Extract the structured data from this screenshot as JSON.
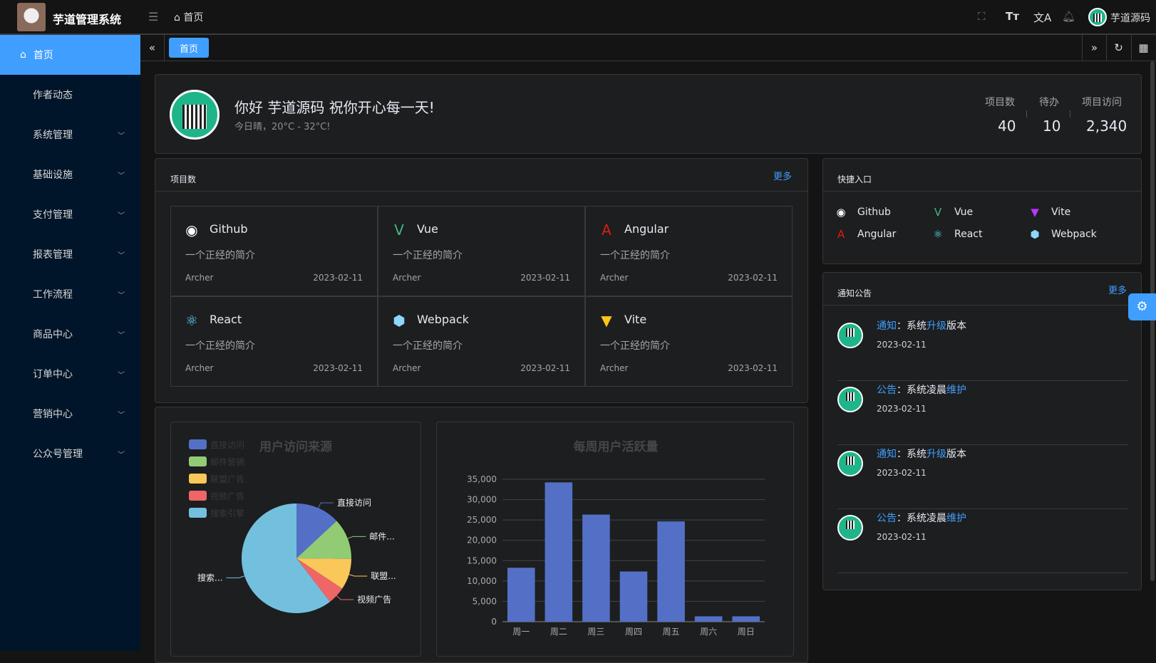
{
  "header": {
    "app_title": "芋道管理系统",
    "breadcrumb": "首页",
    "user_name": "芋道源码"
  },
  "sidebar": {
    "items": [
      {
        "label": "首页",
        "active": true
      },
      {
        "label": "作者动态"
      },
      {
        "label": "系统管理",
        "expand": true
      },
      {
        "label": "基础设施",
        "expand": true
      },
      {
        "label": "支付管理",
        "expand": true
      },
      {
        "label": "报表管理",
        "expand": true
      },
      {
        "label": "工作流程",
        "expand": true
      },
      {
        "label": "商品中心",
        "expand": true
      },
      {
        "label": "订单中心",
        "expand": true
      },
      {
        "label": "营销中心",
        "expand": true
      },
      {
        "label": "公众号管理",
        "expand": true
      }
    ]
  },
  "tabs": {
    "active": "首页"
  },
  "welcome": {
    "greeting": "你好 芋道源码 祝你开心每一天!",
    "weather": "今日晴，20°C - 32°C!",
    "stats": [
      {
        "label": "项目数",
        "value": "40"
      },
      {
        "label": "待办",
        "value": "10"
      },
      {
        "label": "项目访问",
        "value": "2,340"
      }
    ]
  },
  "projects": {
    "title": "项目数",
    "more": "更多",
    "items": [
      {
        "name": "Github",
        "icon": "github-icon",
        "color": "#ffffff",
        "desc": "一个正经的简介",
        "author": "Archer",
        "date": "2023-02-11"
      },
      {
        "name": "Vue",
        "icon": "vue-icon",
        "color": "#42b883",
        "desc": "一个正经的简介",
        "author": "Archer",
        "date": "2023-02-11"
      },
      {
        "name": "Angular",
        "icon": "angular-icon",
        "color": "#dd1b16",
        "desc": "一个正经的简介",
        "author": "Archer",
        "date": "2023-02-11"
      },
      {
        "name": "React",
        "icon": "react-icon",
        "color": "#61dafb",
        "desc": "一个正经的简介",
        "author": "Archer",
        "date": "2023-02-11"
      },
      {
        "name": "Webpack",
        "icon": "webpack-icon",
        "color": "#8ed6fb",
        "desc": "一个正经的简介",
        "author": "Archer",
        "date": "2023-02-11"
      },
      {
        "name": "Vite",
        "icon": "vite-icon",
        "color": "#ffc517",
        "desc": "一个正经的简介",
        "author": "Archer",
        "date": "2023-02-11"
      }
    ]
  },
  "quick": {
    "title": "快捷入口",
    "items": [
      {
        "name": "Github",
        "icon": "github-icon"
      },
      {
        "name": "Vue",
        "icon": "vue-icon"
      },
      {
        "name": "Vite",
        "icon": "vite-icon"
      },
      {
        "name": "Angular",
        "icon": "angular-icon"
      },
      {
        "name": "React",
        "icon": "react-icon"
      },
      {
        "name": "Webpack",
        "icon": "webpack-icon"
      }
    ]
  },
  "notices": {
    "title": "通知公告",
    "more": "更多",
    "items": [
      {
        "type": "通知",
        "sep": "：",
        "pre": "系统",
        "hl": "升级",
        "post": "版本",
        "date": "2023-02-11"
      },
      {
        "type": "公告",
        "sep": "：",
        "pre": "系统凌晨",
        "hl": "维护",
        "post": "",
        "date": "2023-02-11"
      },
      {
        "type": "通知",
        "sep": "：",
        "pre": "系统",
        "hl": "升级",
        "post": "版本",
        "date": "2023-02-11"
      },
      {
        "type": "公告",
        "sep": "：",
        "pre": "系统凌晨",
        "hl": "维护",
        "post": "",
        "date": "2023-02-11"
      }
    ]
  },
  "chart_data": [
    {
      "type": "pie",
      "title": "用户访问来源",
      "legend_position": "top-left",
      "categories": [
        "直接访问",
        "邮件营销",
        "联盟广告",
        "视频广告",
        "搜索引擎"
      ],
      "slice_labels": [
        "直接访问",
        "邮件...",
        "联盟...",
        "视频广告",
        "搜索..."
      ],
      "values": [
        335,
        310,
        234,
        135,
        1548
      ],
      "colors": [
        "#5470c6",
        "#91cc75",
        "#fac858",
        "#ee6666",
        "#73c0de"
      ]
    },
    {
      "type": "bar",
      "title": "每周用户活跃量",
      "categories": [
        "周一",
        "周二",
        "周三",
        "周四",
        "周五",
        "周六",
        "周日"
      ],
      "values": [
        13253,
        34235,
        26321,
        12340,
        24643,
        1322,
        1324
      ],
      "ylim": [
        0,
        35000
      ],
      "yticks": [
        "0",
        "5,000",
        "10,000",
        "15,000",
        "20,000",
        "25,000",
        "30,000",
        "35,000"
      ],
      "grid": true,
      "color": "#5470c6"
    }
  ]
}
